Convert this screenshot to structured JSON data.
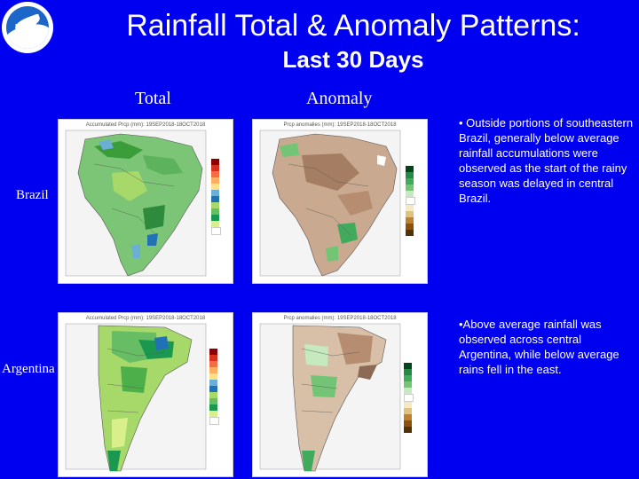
{
  "header": {
    "title": "Rainfall Total & Anomaly Patterns:",
    "subtitle": "Last 30 Days",
    "logo_text": "NOAA"
  },
  "columns": {
    "total": "Total",
    "anomaly": "Anomaly"
  },
  "rows": {
    "brazil": "Brazil",
    "argentina": "Argentina"
  },
  "panels": {
    "brazil_total": {
      "title": "Accumulated Prcp (mm): 19SEP2018-18OCT2018",
      "colors": [
        "#8b0000",
        "#d7301f",
        "#f46d43",
        "#fdae61",
        "#fee08b",
        "#ffffbf",
        "#d9ef8b",
        "#a6d96a",
        "#66bd63",
        "#1a9850",
        "#6baed6",
        "#2171b5",
        "#08306b"
      ]
    },
    "brazil_anomaly": {
      "title": "Prcp anomalies (mm): 19SEP2018-18OCT2018",
      "colors": [
        "#00441b",
        "#006d2c",
        "#238b45",
        "#41ab5d",
        "#74c476",
        "#c7e9c0",
        "#ffffff",
        "#f6e8c3",
        "#dfc27d",
        "#bf812d",
        "#8c510a",
        "#543005"
      ]
    },
    "argentina_total": {
      "title": "Accumulated Prcp (mm): 19SEP2018-18OCT2018",
      "colors": [
        "#8b0000",
        "#d7301f",
        "#f46d43",
        "#fdae61",
        "#fee08b",
        "#ffffbf",
        "#d9ef8b",
        "#a6d96a",
        "#66bd63",
        "#1a9850",
        "#6baed6",
        "#2171b5",
        "#08306b"
      ]
    },
    "argentina_anomaly": {
      "title": "Prcp anomalies (mm): 19SEP2018-18OCT2018",
      "colors": [
        "#00441b",
        "#006d2c",
        "#238b45",
        "#41ab5d",
        "#74c476",
        "#c7e9c0",
        "#ffffff",
        "#f6e8c3",
        "#dfc27d",
        "#bf812d",
        "#8c510a",
        "#543005"
      ]
    }
  },
  "notes": {
    "brazil": "• Outside portions of southeastern Brazil, generally below average rainfall accumulations were observed as the start of the rainy season was delayed in central Brazil.",
    "argentina": "•Above average rainfall was observed across central Argentina, while below average rains fell in the east."
  }
}
